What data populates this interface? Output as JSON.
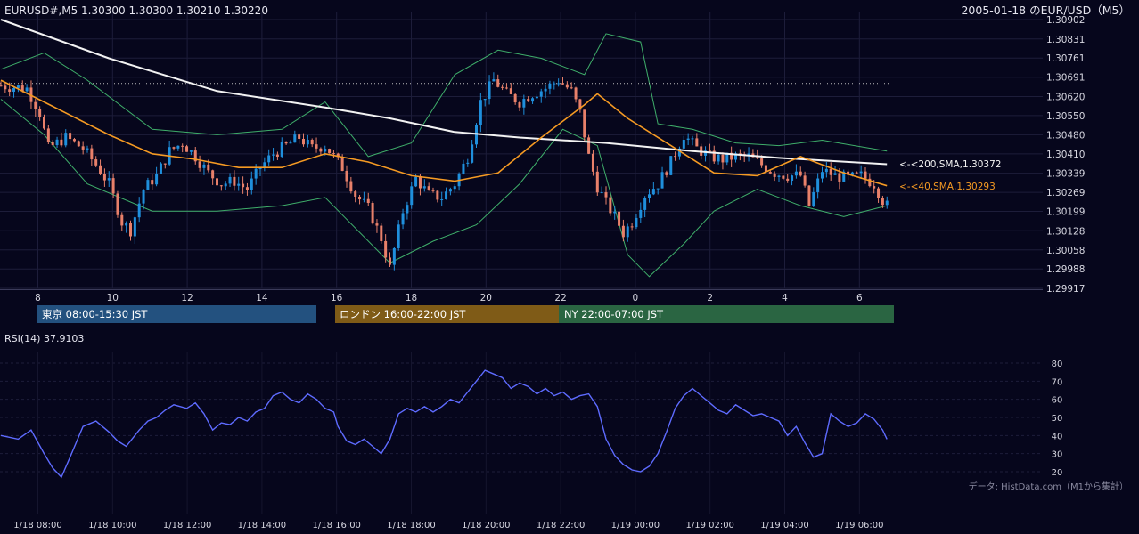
{
  "header": {
    "symbol_info": "EURUSD#,M5  1.30300 1.30300 1.30210 1.30220",
    "date_title": "2005-01-18 のEUR/USD（M5）"
  },
  "colors": {
    "background": "#06061c",
    "grid": "#1d1d3a",
    "up_candle": "#1f8fdc",
    "down_candle": "#e8806a",
    "sma200": "#f2f2f2",
    "sma40": "#f59a23",
    "bollinger": "#3fae6a",
    "rsi": "#5e6bff",
    "tokyo": "#23517f",
    "london": "#7f5b17",
    "ny": "#2a6542"
  },
  "sessions": [
    {
      "name": "tokyo",
      "label": "東京 08:00-15:30 JST"
    },
    {
      "name": "london",
      "label": "ロンドン 16:00-22:00 JST"
    },
    {
      "name": "ny",
      "label": "NY 22:00-07:00 JST"
    }
  ],
  "rsi": {
    "label": "RSI(14) 37.9103"
  },
  "source_note": "データ: HistData.com（M1から集計）",
  "chart_data": {
    "type": "candlestick",
    "title": "2005-01-18 のEUR/USD（M5）",
    "price_ticks": [
      "1.30902",
      "1.30831",
      "1.30761",
      "1.30691",
      "1.30620",
      "1.30550",
      "1.30480",
      "1.30410",
      "1.30339",
      "1.30269",
      "1.30199",
      "1.30128",
      "1.30058",
      "1.29988",
      "1.29917"
    ],
    "ylim": [
      1.29917,
      1.30902
    ],
    "hour_ticks": [
      "8",
      "10",
      "12",
      "14",
      "16",
      "18",
      "20",
      "22",
      "0",
      "2",
      "4",
      "6"
    ],
    "time_ticks": [
      "1/18 08:00",
      "1/18 10:00",
      "1/18 12:00",
      "1/18 14:00",
      "1/18 16:00",
      "1/18 18:00",
      "1/18 20:00",
      "1/18 22:00",
      "1/19 00:00",
      "1/19 02:00",
      "1/19 04:00",
      "1/19 06:00"
    ],
    "dotted_level": 1.30668,
    "sma200_label": "<-<200,SMA,1.30372",
    "sma40_label": "<-<40,SMA,1.30293",
    "close_path": [
      [
        0,
        1.3066
      ],
      [
        6,
        1.3065
      ],
      [
        9,
        1.3056
      ],
      [
        11,
        1.3043
      ],
      [
        15,
        1.3047
      ],
      [
        19,
        1.3043
      ],
      [
        22,
        1.3037
      ],
      [
        25,
        1.303
      ],
      [
        28,
        1.3016
      ],
      [
        30,
        1.3013
      ],
      [
        33,
        1.3028
      ],
      [
        36,
        1.3033
      ],
      [
        39,
        1.3042
      ],
      [
        42,
        1.3045
      ],
      [
        45,
        1.304
      ],
      [
        48,
        1.3034
      ],
      [
        51,
        1.303
      ],
      [
        54,
        1.3031
      ],
      [
        57,
        1.3028
      ],
      [
        60,
        1.3036
      ],
      [
        63,
        1.3041
      ],
      [
        66,
        1.3044
      ],
      [
        69,
        1.3047
      ],
      [
        72,
        1.3043
      ],
      [
        75,
        1.3044
      ],
      [
        79,
        1.3036
      ],
      [
        82,
        1.3026
      ],
      [
        85,
        1.3021
      ],
      [
        88,
        1.301
      ],
      [
        90,
        1.2999
      ],
      [
        93,
        1.302
      ],
      [
        96,
        1.3032
      ],
      [
        99,
        1.3026
      ],
      [
        102,
        1.3025
      ],
      [
        105,
        1.303
      ],
      [
        108,
        1.304
      ],
      [
        111,
        1.306
      ],
      [
        114,
        1.3068
      ],
      [
        117,
        1.3063
      ],
      [
        120,
        1.306
      ],
      [
        123,
        1.3063
      ],
      [
        126,
        1.3065
      ],
      [
        129,
        1.3068
      ],
      [
        132,
        1.3064
      ],
      [
        134,
        1.3056
      ],
      [
        136,
        1.304
      ],
      [
        138,
        1.3029
      ],
      [
        140,
        1.3023
      ],
      [
        142,
        1.3018
      ],
      [
        144,
        1.3012
      ],
      [
        146,
        1.3016
      ],
      [
        149,
        1.3026
      ],
      [
        152,
        1.303
      ],
      [
        155,
        1.3038
      ],
      [
        158,
        1.3048
      ],
      [
        161,
        1.3043
      ],
      [
        164,
        1.304
      ],
      [
        167,
        1.3039
      ],
      [
        170,
        1.304
      ],
      [
        173,
        1.304
      ],
      [
        176,
        1.3037
      ],
      [
        179,
        1.3034
      ],
      [
        182,
        1.3033
      ],
      [
        185,
        1.3033
      ],
      [
        187,
        1.3022
      ],
      [
        190,
        1.3035
      ],
      [
        193,
        1.3033
      ],
      [
        196,
        1.3032
      ],
      [
        199,
        1.3033
      ],
      [
        202,
        1.303
      ],
      [
        204,
        1.3024
      ],
      [
        205,
        1.3022
      ]
    ],
    "sma200": [
      [
        0,
        1.30902
      ],
      [
        25,
        1.3076
      ],
      [
        50,
        1.3064
      ],
      [
        75,
        1.3058
      ],
      [
        90,
        1.3054
      ],
      [
        105,
        1.3049
      ],
      [
        120,
        1.3047
      ],
      [
        140,
        1.3045
      ],
      [
        160,
        1.3042
      ],
      [
        180,
        1.30395
      ],
      [
        205,
        1.30372
      ]
    ],
    "sma40": [
      [
        0,
        1.3068
      ],
      [
        10,
        1.306
      ],
      [
        25,
        1.3048
      ],
      [
        35,
        1.3041
      ],
      [
        45,
        1.3039
      ],
      [
        55,
        1.3036
      ],
      [
        65,
        1.3036
      ],
      [
        75,
        1.3041
      ],
      [
        85,
        1.3038
      ],
      [
        95,
        1.3033
      ],
      [
        105,
        1.3031
      ],
      [
        115,
        1.3034
      ],
      [
        125,
        1.3047
      ],
      [
        135,
        1.3059
      ],
      [
        138,
        1.3063
      ],
      [
        145,
        1.3054
      ],
      [
        155,
        1.3044
      ],
      [
        165,
        1.3034
      ],
      [
        175,
        1.3033
      ],
      [
        185,
        1.304
      ],
      [
        195,
        1.3034
      ],
      [
        205,
        1.30293
      ]
    ],
    "bb_upper": [
      [
        0,
        1.3072
      ],
      [
        10,
        1.3078
      ],
      [
        20,
        1.3068
      ],
      [
        35,
        1.305
      ],
      [
        50,
        1.3048
      ],
      [
        65,
        1.305
      ],
      [
        75,
        1.306
      ],
      [
        85,
        1.304
      ],
      [
        95,
        1.3045
      ],
      [
        105,
        1.307
      ],
      [
        115,
        1.3079
      ],
      [
        125,
        1.3076
      ],
      [
        135,
        1.307
      ],
      [
        140,
        1.3085
      ],
      [
        148,
        1.3082
      ],
      [
        152,
        1.3052
      ],
      [
        160,
        1.305
      ],
      [
        170,
        1.3045
      ],
      [
        180,
        1.3044
      ],
      [
        190,
        1.3046
      ],
      [
        205,
        1.3042
      ]
    ],
    "bb_lower": [
      [
        0,
        1.3061
      ],
      [
        10,
        1.3048
      ],
      [
        20,
        1.303
      ],
      [
        35,
        1.302
      ],
      [
        50,
        1.302
      ],
      [
        65,
        1.3022
      ],
      [
        75,
        1.3025
      ],
      [
        90,
        1.3001
      ],
      [
        100,
        1.3009
      ],
      [
        110,
        1.3015
      ],
      [
        120,
        1.303
      ],
      [
        130,
        1.305
      ],
      [
        138,
        1.3044
      ],
      [
        145,
        1.3004
      ],
      [
        150,
        1.2996
      ],
      [
        158,
        1.3008
      ],
      [
        165,
        1.302
      ],
      [
        175,
        1.3028
      ],
      [
        185,
        1.3022
      ],
      [
        195,
        1.3018
      ],
      [
        205,
        1.3022
      ]
    ],
    "rsi_ylim": [
      10,
      85
    ],
    "rsi_ticks": [
      "80",
      "70",
      "60",
      "50",
      "40",
      "30",
      "20"
    ],
    "rsi_values": [
      [
        0,
        40
      ],
      [
        4,
        38
      ],
      [
        7,
        43
      ],
      [
        10,
        30
      ],
      [
        12,
        22
      ],
      [
        14,
        17
      ],
      [
        16,
        28
      ],
      [
        19,
        45
      ],
      [
        22,
        48
      ],
      [
        25,
        42
      ],
      [
        27,
        37
      ],
      [
        29,
        34
      ],
      [
        32,
        43
      ],
      [
        34,
        48
      ],
      [
        36,
        50
      ],
      [
        38,
        54
      ],
      [
        40,
        57
      ],
      [
        43,
        55
      ],
      [
        45,
        58
      ],
      [
        47,
        52
      ],
      [
        49,
        43
      ],
      [
        51,
        47
      ],
      [
        53,
        46
      ],
      [
        55,
        50
      ],
      [
        57,
        48
      ],
      [
        59,
        53
      ],
      [
        61,
        55
      ],
      [
        63,
        62
      ],
      [
        65,
        64
      ],
      [
        67,
        60
      ],
      [
        69,
        58
      ],
      [
        71,
        63
      ],
      [
        73,
        60
      ],
      [
        75,
        55
      ],
      [
        77,
        53
      ],
      [
        78,
        45
      ],
      [
        80,
        37
      ],
      [
        82,
        35
      ],
      [
        84,
        38
      ],
      [
        86,
        34
      ],
      [
        88,
        30
      ],
      [
        90,
        38
      ],
      [
        92,
        52
      ],
      [
        94,
        55
      ],
      [
        96,
        53
      ],
      [
        98,
        56
      ],
      [
        100,
        53
      ],
      [
        102,
        56
      ],
      [
        104,
        60
      ],
      [
        106,
        58
      ],
      [
        108,
        64
      ],
      [
        110,
        70
      ],
      [
        112,
        76
      ],
      [
        114,
        74
      ],
      [
        116,
        72
      ],
      [
        118,
        66
      ],
      [
        120,
        69
      ],
      [
        122,
        67
      ],
      [
        124,
        63
      ],
      [
        126,
        66
      ],
      [
        128,
        62
      ],
      [
        130,
        64
      ],
      [
        132,
        60
      ],
      [
        134,
        62
      ],
      [
        136,
        63
      ],
      [
        138,
        56
      ],
      [
        140,
        38
      ],
      [
        142,
        29
      ],
      [
        144,
        24
      ],
      [
        146,
        21
      ],
      [
        148,
        20
      ],
      [
        150,
        23
      ],
      [
        152,
        30
      ],
      [
        154,
        42
      ],
      [
        156,
        55
      ],
      [
        158,
        62
      ],
      [
        160,
        66
      ],
      [
        162,
        62
      ],
      [
        164,
        58
      ],
      [
        166,
        54
      ],
      [
        168,
        52
      ],
      [
        170,
        57
      ],
      [
        172,
        54
      ],
      [
        174,
        51
      ],
      [
        176,
        52
      ],
      [
        178,
        50
      ],
      [
        180,
        48
      ],
      [
        182,
        40
      ],
      [
        184,
        45
      ],
      [
        186,
        36
      ],
      [
        188,
        28
      ],
      [
        190,
        30
      ],
      [
        192,
        52
      ],
      [
        194,
        48
      ],
      [
        196,
        45
      ],
      [
        198,
        47
      ],
      [
        200,
        52
      ],
      [
        202,
        49
      ],
      [
        204,
        43
      ],
      [
        205,
        38
      ]
    ]
  }
}
